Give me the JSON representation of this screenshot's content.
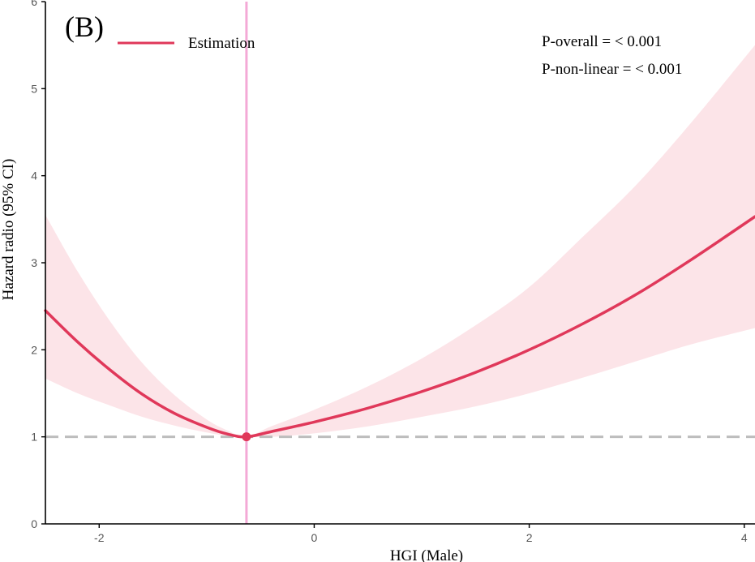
{
  "chart_data": {
    "type": "line",
    "panel_label": "(B)",
    "xlabel": "HGI (Male)",
    "ylabel": "Hazard  radio (95% CI)",
    "xlim": [
      -2.5,
      4.1
    ],
    "ylim": [
      0,
      6
    ],
    "x_ticks": [
      -2,
      0,
      2,
      4
    ],
    "y_ticks": [
      0,
      1,
      2,
      3,
      4,
      5,
      6
    ],
    "x_tick_labels": [
      "-2",
      "0",
      "2",
      "4"
    ],
    "y_tick_labels": [
      "0",
      "1",
      "2",
      "3",
      "4",
      "5",
      "6"
    ],
    "reference_x": -0.63,
    "reference_y": 1,
    "knot_point": {
      "x": -0.63,
      "y": 1
    },
    "legend": [
      "Estimation"
    ],
    "annotations": [
      "P-overall = < 0.001",
      "P-non-linear = < 0.001"
    ],
    "series": [
      {
        "name": "Estimation",
        "x": [
          -2.5,
          -2.2,
          -1.9,
          -1.6,
          -1.3,
          -1.0,
          -0.8,
          -0.63,
          -0.4,
          0.0,
          0.5,
          1.0,
          1.5,
          2.0,
          2.5,
          3.0,
          3.5,
          4.1
        ],
        "y": [
          2.45,
          2.09,
          1.77,
          1.49,
          1.27,
          1.11,
          1.03,
          1.0,
          1.06,
          1.17,
          1.33,
          1.52,
          1.74,
          2.0,
          2.3,
          2.64,
          3.03,
          3.53
        ],
        "ci_lower": [
          1.67,
          1.5,
          1.36,
          1.23,
          1.13,
          1.05,
          1.01,
          1.0,
          1.0,
          1.04,
          1.12,
          1.23,
          1.35,
          1.5,
          1.68,
          1.87,
          2.06,
          2.25
        ],
        "ci_upper": [
          3.55,
          2.9,
          2.33,
          1.85,
          1.48,
          1.2,
          1.07,
          1.0,
          1.12,
          1.31,
          1.58,
          1.9,
          2.28,
          2.72,
          3.3,
          3.9,
          4.6,
          5.5
        ]
      }
    ],
    "colors": {
      "line": "#e0385a",
      "ci_band": "#fce4e8",
      "vertical_ref": "#f4a9d6",
      "horizontal_ref": "#bdbdbd",
      "axis": "#000000"
    }
  }
}
